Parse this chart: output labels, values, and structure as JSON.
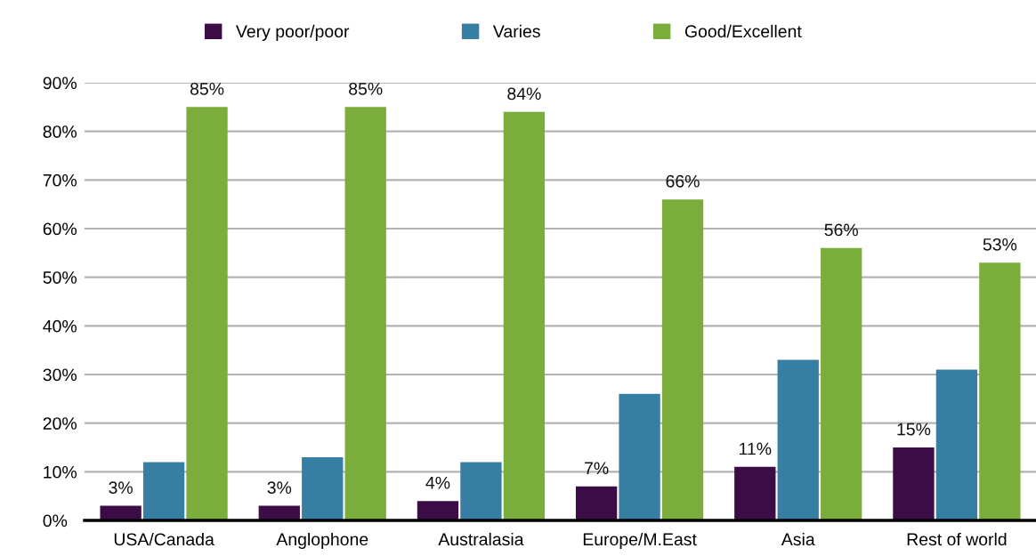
{
  "chart_data": {
    "type": "bar",
    "categories": [
      "USA/Canada",
      "Anglophone",
      "Australasia",
      "Europe/M.East",
      "Asia",
      "Rest of world"
    ],
    "series": [
      {
        "name": "Very poor/poor",
        "color": "#3c0c46",
        "values": [
          3,
          3,
          4,
          7,
          11,
          15
        ],
        "value_labels": [
          "3%",
          "3%",
          "4%",
          "7%",
          "11%",
          "15%"
        ]
      },
      {
        "name": "Varies",
        "color": "#377ea3",
        "values": [
          12,
          13,
          12,
          26,
          33,
          31
        ]
      },
      {
        "name": "Good/Excellent",
        "color": "#7aad3c",
        "values": [
          85,
          85,
          84,
          66,
          56,
          53
        ],
        "value_labels": [
          "85%",
          "85%",
          "84%",
          "66%",
          "56%",
          "53%"
        ]
      }
    ],
    "ylim": [
      0,
      90
    ],
    "yticks": [
      {
        "value": 0,
        "label": "0%"
      },
      {
        "value": 10,
        "label": "10%"
      },
      {
        "value": 20,
        "label": "20%"
      },
      {
        "value": 30,
        "label": "30%"
      },
      {
        "value": 40,
        "label": "40%"
      },
      {
        "value": 50,
        "label": "50%"
      },
      {
        "value": 60,
        "label": "60%"
      },
      {
        "value": 70,
        "label": "70%"
      },
      {
        "value": 80,
        "label": "80%"
      },
      {
        "value": 90,
        "label": "90%"
      }
    ],
    "grid": "y",
    "legend": "top"
  }
}
